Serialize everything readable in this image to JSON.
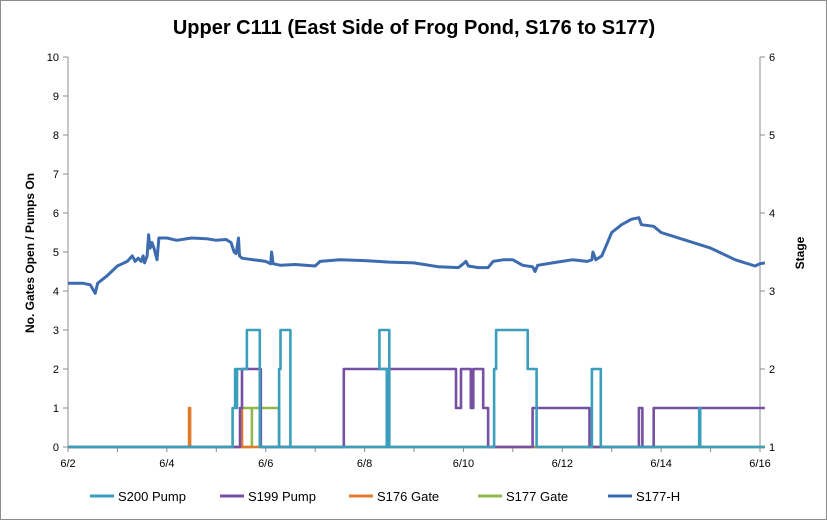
{
  "chart_data": {
    "type": "line",
    "title": "Upper C111 (East Side of Frog Pond, S176 to S177)",
    "y_left_label": "No. Gates Open / Pumps On",
    "y_right_label": "Stage",
    "y_left_range": [
      0,
      10
    ],
    "y_right_range": [
      1,
      6
    ],
    "y_left_ticks": [
      "0",
      "1",
      "2",
      "3",
      "4",
      "5",
      "6",
      "7",
      "8",
      "9",
      "10"
    ],
    "y_right_ticks": [
      "1",
      "2",
      "3",
      "4",
      "5",
      "6"
    ],
    "x_range": [
      "6/2",
      "6/16"
    ],
    "x_ticks": [
      {
        "day": 2,
        "label": "6/2"
      },
      {
        "day": 4,
        "label": "6/4"
      },
      {
        "day": 6,
        "label": "6/6"
      },
      {
        "day": 8,
        "label": "6/8"
      },
      {
        "day": 10,
        "label": "6/10"
      },
      {
        "day": 12,
        "label": "6/12"
      },
      {
        "day": 14,
        "label": "6/14"
      },
      {
        "day": 16,
        "label": "6/16"
      }
    ],
    "grid": false,
    "legend_position": "bottom",
    "series": [
      {
        "name": "S200 Pump",
        "axis": "left",
        "step": true,
        "color": "#3a9ebc",
        "points": [
          [
            2.0,
            0
          ],
          [
            5.33,
            0
          ],
          [
            5.33,
            1
          ],
          [
            5.38,
            1
          ],
          [
            5.38,
            2
          ],
          [
            5.4,
            2
          ],
          [
            5.4,
            1
          ],
          [
            5.42,
            1
          ],
          [
            5.42,
            2
          ],
          [
            5.62,
            2
          ],
          [
            5.62,
            3
          ],
          [
            5.88,
            3
          ],
          [
            5.88,
            0
          ],
          [
            8.45,
            0
          ],
          [
            8.45,
            2
          ],
          [
            8.3,
            2
          ],
          [
            8.3,
            3
          ],
          [
            8.5,
            3
          ],
          [
            8.5,
            0
          ],
          [
            8.3,
            0
          ],
          [
            8.45,
            0
          ],
          [
            6.27,
            0
          ],
          [
            6.27,
            2
          ],
          [
            6.3,
            2
          ],
          [
            6.3,
            3
          ],
          [
            6.5,
            3
          ],
          [
            6.5,
            0
          ],
          [
            10.62,
            0
          ],
          [
            10.62,
            2
          ],
          [
            10.66,
            2
          ],
          [
            10.66,
            3
          ],
          [
            11.3,
            3
          ],
          [
            11.3,
            2
          ],
          [
            11.48,
            2
          ],
          [
            11.48,
            0
          ],
          [
            12.6,
            0
          ],
          [
            12.6,
            2
          ],
          [
            12.78,
            2
          ],
          [
            12.78,
            0
          ],
          [
            14.77,
            0
          ],
          [
            14.77,
            1
          ],
          [
            14.79,
            1
          ],
          [
            14.79,
            0
          ],
          [
            16.1,
            0
          ]
        ]
      },
      {
        "name": "S199 Pump",
        "axis": "left",
        "step": true,
        "color": "#7650a2",
        "points": [
          [
            2.0,
            0
          ],
          [
            5.48,
            0
          ],
          [
            5.48,
            1
          ],
          [
            5.52,
            1
          ],
          [
            5.52,
            2
          ],
          [
            5.9,
            2
          ],
          [
            5.9,
            0
          ],
          [
            6.26,
            0
          ],
          [
            7.58,
            0
          ],
          [
            7.58,
            2
          ],
          [
            9.85,
            2
          ],
          [
            9.85,
            1
          ],
          [
            9.95,
            1
          ],
          [
            9.95,
            2
          ],
          [
            10.15,
            2
          ],
          [
            10.15,
            1
          ],
          [
            10.2,
            1
          ],
          [
            10.2,
            2
          ],
          [
            10.4,
            2
          ],
          [
            10.4,
            1
          ],
          [
            10.5,
            1
          ],
          [
            10.5,
            0
          ],
          [
            11.4,
            0
          ],
          [
            11.4,
            1
          ],
          [
            12.55,
            1
          ],
          [
            12.55,
            0
          ],
          [
            13.55,
            0
          ],
          [
            13.55,
            1
          ],
          [
            13.62,
            1
          ],
          [
            13.62,
            0
          ],
          [
            13.85,
            0
          ],
          [
            13.85,
            1
          ],
          [
            16.1,
            1
          ]
        ]
      },
      {
        "name": "S176 Gate",
        "axis": "left",
        "step": true,
        "color": "#e07a2c",
        "points": [
          [
            2.0,
            0
          ],
          [
            4.45,
            0
          ],
          [
            4.45,
            1
          ],
          [
            4.47,
            1
          ],
          [
            4.47,
            0
          ],
          [
            5.5,
            0
          ],
          [
            5.5,
            1
          ],
          [
            5.52,
            1
          ],
          [
            5.52,
            0
          ],
          [
            16.1,
            0
          ]
        ]
      },
      {
        "name": "S177 Gate",
        "axis": "left",
        "step": true,
        "color": "#8fb94c",
        "points": [
          [
            2.0,
            0
          ],
          [
            5.72,
            0
          ],
          [
            5.72,
            1
          ],
          [
            5.55,
            1
          ],
          [
            5.55,
            1
          ],
          [
            6.27,
            1
          ],
          [
            6.27,
            0
          ],
          [
            16.1,
            0
          ]
        ]
      },
      {
        "name": "S177-H",
        "axis": "right",
        "step": false,
        "color": "#3d6bb0",
        "points": [
          [
            2.0,
            3.1
          ],
          [
            2.3,
            3.1
          ],
          [
            2.45,
            3.08
          ],
          [
            2.55,
            2.97
          ],
          [
            2.6,
            3.1
          ],
          [
            2.8,
            3.2
          ],
          [
            3.0,
            3.32
          ],
          [
            3.2,
            3.38
          ],
          [
            3.3,
            3.45
          ],
          [
            3.36,
            3.38
          ],
          [
            3.42,
            3.42
          ],
          [
            3.48,
            3.38
          ],
          [
            3.52,
            3.45
          ],
          [
            3.55,
            3.36
          ],
          [
            3.6,
            3.45
          ],
          [
            3.63,
            3.72
          ],
          [
            3.66,
            3.55
          ],
          [
            3.7,
            3.62
          ],
          [
            3.74,
            3.55
          ],
          [
            3.8,
            3.4
          ],
          [
            3.84,
            3.68
          ],
          [
            4.0,
            3.68
          ],
          [
            4.2,
            3.65
          ],
          [
            4.5,
            3.68
          ],
          [
            4.8,
            3.67
          ],
          [
            5.0,
            3.65
          ],
          [
            5.2,
            3.66
          ],
          [
            5.3,
            3.62
          ],
          [
            5.36,
            3.5
          ],
          [
            5.4,
            3.48
          ],
          [
            5.45,
            3.68
          ],
          [
            5.47,
            3.45
          ],
          [
            5.52,
            3.42
          ],
          [
            6.0,
            3.38
          ],
          [
            6.1,
            3.35
          ],
          [
            6.12,
            3.5
          ],
          [
            6.15,
            3.35
          ],
          [
            6.3,
            3.33
          ],
          [
            6.6,
            3.34
          ],
          [
            7.0,
            3.32
          ],
          [
            7.1,
            3.38
          ],
          [
            7.5,
            3.4
          ],
          [
            8.0,
            3.39
          ],
          [
            8.5,
            3.37
          ],
          [
            9.0,
            3.36
          ],
          [
            9.5,
            3.31
          ],
          [
            9.9,
            3.3
          ],
          [
            10.0,
            3.35
          ],
          [
            10.05,
            3.38
          ],
          [
            10.1,
            3.32
          ],
          [
            10.3,
            3.3
          ],
          [
            10.5,
            3.3
          ],
          [
            10.6,
            3.38
          ],
          [
            10.8,
            3.4
          ],
          [
            11.0,
            3.4
          ],
          [
            11.2,
            3.33
          ],
          [
            11.4,
            3.31
          ],
          [
            11.45,
            3.25
          ],
          [
            11.5,
            3.33
          ],
          [
            11.8,
            3.36
          ],
          [
            12.2,
            3.4
          ],
          [
            12.5,
            3.38
          ],
          [
            12.6,
            3.4
          ],
          [
            12.62,
            3.5
          ],
          [
            12.68,
            3.4
          ],
          [
            12.8,
            3.45
          ],
          [
            12.9,
            3.6
          ],
          [
            13.0,
            3.75
          ],
          [
            13.2,
            3.85
          ],
          [
            13.4,
            3.92
          ],
          [
            13.55,
            3.94
          ],
          [
            13.6,
            3.85
          ],
          [
            13.85,
            3.83
          ],
          [
            14.0,
            3.75
          ],
          [
            14.5,
            3.65
          ],
          [
            15.0,
            3.55
          ],
          [
            15.5,
            3.4
          ],
          [
            15.9,
            3.32
          ],
          [
            16.0,
            3.35
          ],
          [
            16.1,
            3.36
          ]
        ]
      }
    ]
  }
}
